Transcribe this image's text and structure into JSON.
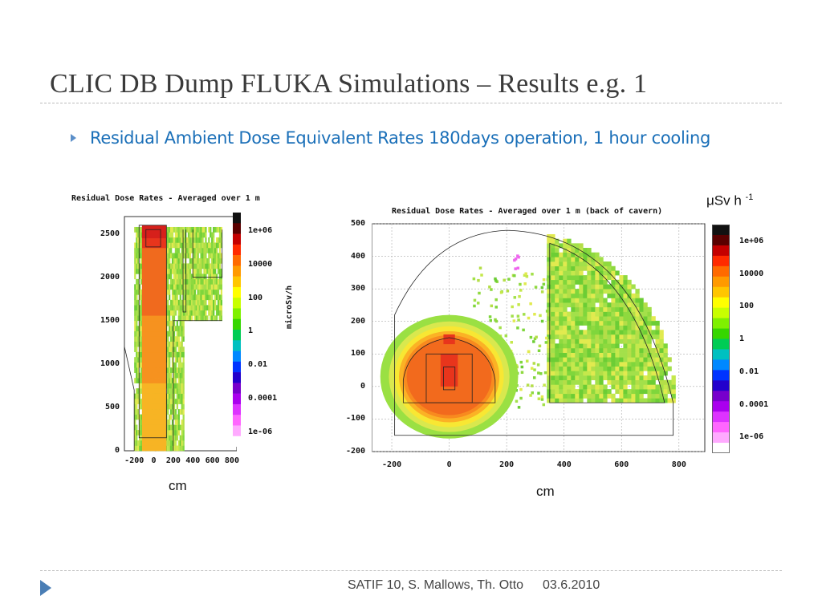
{
  "slide": {
    "title": "CLIC DB Dump FLUKA Simulations – Results e.g. 1",
    "bullet": "Residual Ambient Dose Equivalent Rates 180days operation, 1 hour cooling",
    "unit_label": "μSv h",
    "unit_exponent": "-1",
    "footer": {
      "authors": "SATIF 10, S. Mallows, Th. Otto",
      "date": "03.6.2010"
    }
  },
  "chart_data": [
    {
      "type": "heatmap",
      "title": "Residual Dose Rates - Averaged over 1 m",
      "xlabel": "cm",
      "ylabel": "",
      "xlim": [
        -300,
        850
      ],
      "ylim": [
        0,
        2700
      ],
      "x_ticks": [
        "-200",
        "0",
        "200",
        "400",
        "600",
        "800"
      ],
      "y_ticks": [
        "0",
        "500",
        "1000",
        "1500",
        "2000",
        "2500"
      ],
      "colorbar_unit": "microSv/h",
      "colorbar_labels": [
        "1e+06",
        "10000",
        "100",
        "1",
        "0.01",
        "0.0001",
        "1e-06"
      ]
    },
    {
      "type": "heatmap",
      "title": "Residual Dose Rates - Averaged over 1 m (back of cavern)",
      "xlabel": "cm",
      "ylabel": "",
      "xlim": [
        -270,
        890
      ],
      "ylim": [
        -200,
        500
      ],
      "x_ticks": [
        "-200",
        "0",
        "200",
        "400",
        "600",
        "800"
      ],
      "y_ticks": [
        "500",
        "400",
        "300",
        "200",
        "100",
        "0",
        "-100",
        "-200"
      ],
      "colorbar_labels": [
        "1e+06",
        "10000",
        "100",
        "1",
        "0.01",
        "0.0001",
        "1e-06"
      ]
    }
  ]
}
